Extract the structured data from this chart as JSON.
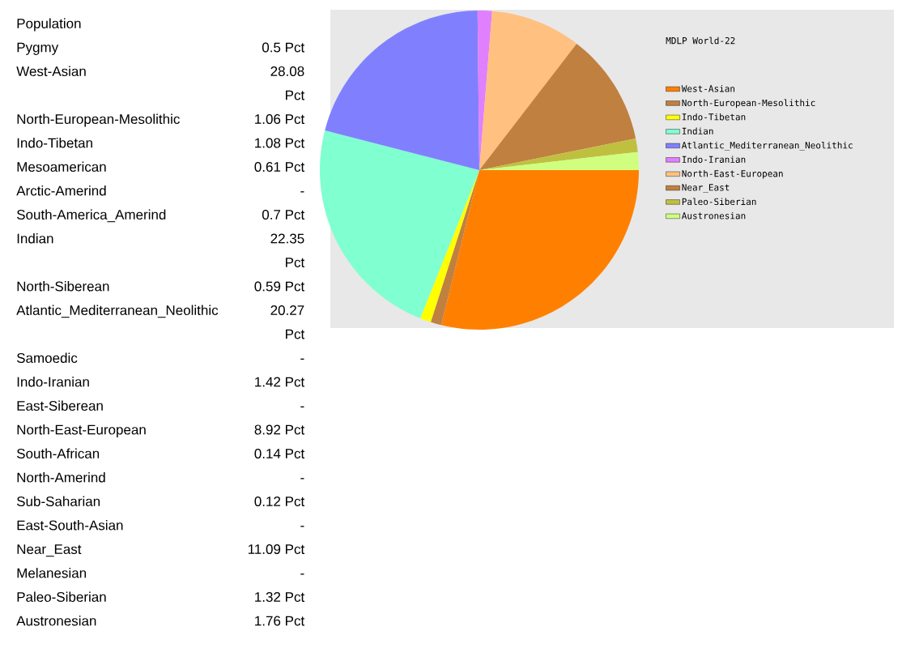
{
  "chart_data": [
    {
      "type": "other",
      "title": "Population",
      "categories": [
        "Pygmy",
        "West-Asian",
        "North-European-Mesolithic",
        "Indo-Tibetan",
        "Mesoamerican",
        "Arctic-Amerind",
        "South-America_Amerind",
        "Indian",
        "North-Siberean",
        "Atlantic_Mediterranean_Neolithic",
        "Samoedic",
        "Indo-Iranian",
        "East-Siberean",
        "North-East-European",
        "South-African",
        "North-Amerind",
        "Sub-Saharian",
        "East-South-Asian",
        "Near_East",
        "Melanesian",
        "Paleo-Siberian",
        "Austronesian"
      ],
      "value_labels": [
        "0.5 Pct",
        "28.08 Pct",
        "1.06 Pct",
        "1.08 Pct",
        "0.61 Pct",
        "-",
        "0.7 Pct",
        "22.35 Pct",
        "0.59 Pct",
        "20.27 Pct",
        "-",
        "1.42 Pct",
        "-",
        "8.92 Pct",
        "0.14 Pct",
        "-",
        "0.12 Pct",
        "-",
        "11.09 Pct",
        "-",
        "1.32 Pct",
        "1.76 Pct"
      ]
    },
    {
      "type": "pie",
      "title": "MDLP World-22",
      "categories": [
        "West-Asian",
        "North-European-Mesolithic",
        "Indo-Tibetan",
        "Indian",
        "Atlantic_Mediterranean_Neolithic",
        "Indo-Iranian",
        "North-East-European",
        "Near_East",
        "Paleo-Siberian",
        "Austronesian"
      ],
      "values": [
        28.84,
        1.09,
        1.11,
        22.96,
        20.82,
        1.46,
        9.16,
        11.39,
        1.36,
        1.81
      ],
      "colors": [
        "#ff8000",
        "#c08040",
        "#ffff00",
        "#80ffd0",
        "#8080ff",
        "#e080ff",
        "#ffc080",
        "#c08040",
        "#c0c040",
        "#d0ff80"
      ],
      "legend": "right"
    }
  ]
}
